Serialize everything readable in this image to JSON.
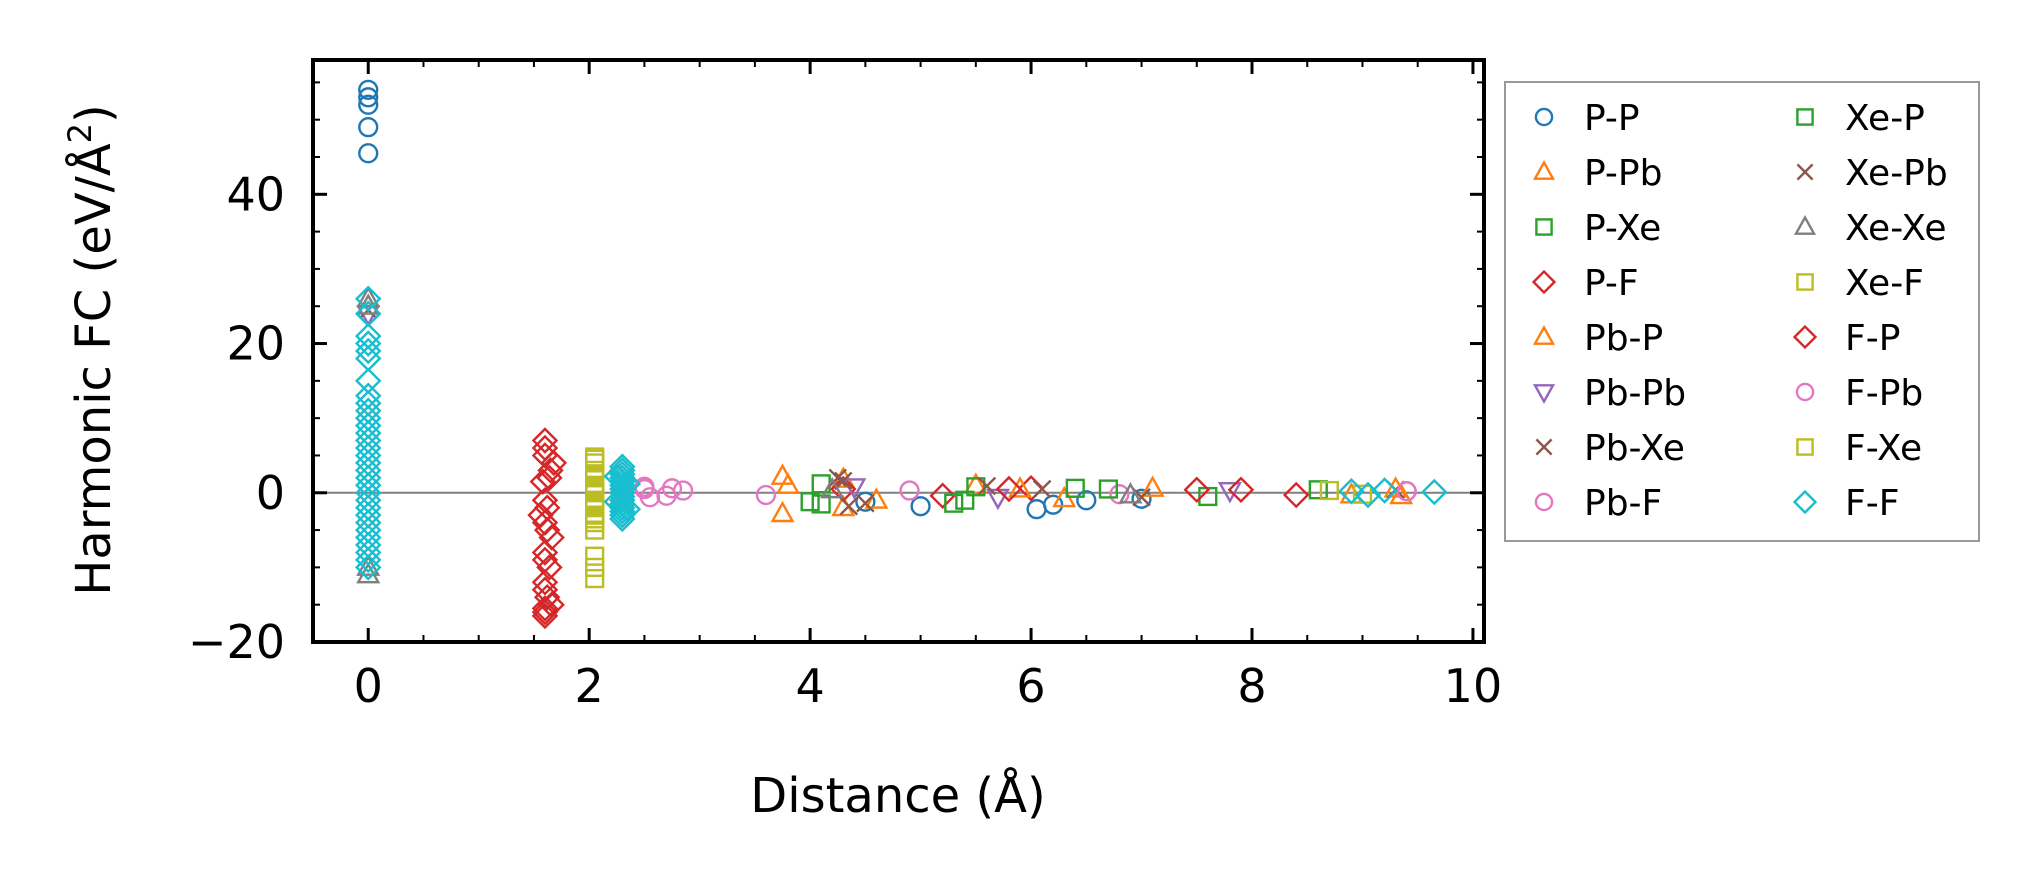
{
  "chart_data": {
    "type": "scatter",
    "xlabel": "Distance (Å)",
    "ylabel_main": "Harmonic FC (eV/Å",
    "ylabel_sup": "2",
    "ylabel_end": ")",
    "xlim": [
      -0.5,
      10.1
    ],
    "ylim": [
      -20,
      58
    ],
    "xticks": [
      0,
      2,
      4,
      6,
      8,
      10
    ],
    "xtick_labels": [
      "0",
      "2",
      "4",
      "6",
      "8",
      "10"
    ],
    "yticks": [
      -20,
      0,
      20,
      40
    ],
    "ytick_labels": [
      "−20",
      "0",
      "20",
      "40"
    ],
    "zero_line": 0,
    "legend_position": "right-outside",
    "series": [
      {
        "name": "P-P",
        "marker": "circle",
        "color": "#1f77b4",
        "points": [
          [
            0,
            54
          ],
          [
            0,
            53
          ],
          [
            0,
            52
          ],
          [
            0,
            49
          ],
          [
            0,
            45.5
          ],
          [
            5.0,
            -1.8
          ],
          [
            6.05,
            -2.2
          ],
          [
            6.2,
            -1.6
          ],
          [
            4.5,
            -1.2
          ],
          [
            7.0,
            -0.8
          ],
          [
            6.5,
            -1.0
          ]
        ]
      },
      {
        "name": "P-Pb",
        "marker": "triangle-up",
        "color": "#ff7f0e",
        "points": [
          [
            3.75,
            2.2
          ],
          [
            3.75,
            -2.8
          ],
          [
            4.3,
            1.8
          ],
          [
            4.3,
            -2.0
          ],
          [
            5.5,
            1.0
          ],
          [
            6.3,
            -0.8
          ],
          [
            7.1,
            0.6
          ],
          [
            9.3,
            0.5
          ],
          [
            9.35,
            -0.4
          ]
        ]
      },
      {
        "name": "P-Xe",
        "marker": "square",
        "color": "#2ca02c",
        "points": [
          [
            4.1,
            -1.5
          ],
          [
            4.1,
            1.2
          ],
          [
            5.4,
            -1.0
          ],
          [
            5.5,
            0.8
          ],
          [
            6.4,
            0.6
          ],
          [
            7.6,
            -0.5
          ],
          [
            8.6,
            0.4
          ]
        ]
      },
      {
        "name": "P-F",
        "marker": "diamond",
        "color": "#d62728",
        "points": [
          [
            1.6,
            7
          ],
          [
            1.6,
            5
          ],
          [
            1.65,
            3
          ],
          [
            1.58,
            1.5
          ],
          [
            1.62,
            -2
          ],
          [
            1.6,
            -4
          ],
          [
            1.66,
            -6
          ],
          [
            1.6,
            -8
          ],
          [
            1.64,
            -10
          ],
          [
            1.6,
            -12
          ],
          [
            1.62,
            -14
          ],
          [
            1.6,
            -15.5
          ],
          [
            1.6,
            -16.5
          ],
          [
            1.68,
            4
          ],
          [
            1.56,
            -3
          ],
          [
            4.3,
            0.5
          ],
          [
            5.2,
            -0.4
          ],
          [
            6.0,
            0.6
          ],
          [
            7.5,
            0.4
          ],
          [
            8.4,
            -0.3
          ]
        ]
      },
      {
        "name": "Pb-P",
        "marker": "triangle-up",
        "color": "#ff7f0e",
        "points": [
          [
            3.8,
            1.0
          ],
          [
            4.6,
            -1.0
          ],
          [
            5.9,
            0.5
          ],
          [
            8.9,
            -0.3
          ]
        ]
      },
      {
        "name": "Pb-Pb",
        "marker": "triangle-down",
        "color": "#9467bd",
        "points": [
          [
            0,
            24
          ],
          [
            4.4,
            0.8
          ],
          [
            5.7,
            -0.6
          ],
          [
            7.8,
            0.3
          ]
        ]
      },
      {
        "name": "Pb-Xe",
        "marker": "x",
        "color": "#8c564b",
        "points": [
          [
            0,
            24.5
          ],
          [
            4.3,
            1.6
          ],
          [
            4.5,
            -1.4
          ],
          [
            5.6,
            0.9
          ],
          [
            7.0,
            -0.6
          ],
          [
            9.3,
            0.4
          ]
        ]
      },
      {
        "name": "Pb-F",
        "marker": "circle",
        "color": "#e377c2",
        "points": [
          [
            2.5,
            0.8
          ],
          [
            2.55,
            -0.6
          ],
          [
            2.75,
            0.6
          ],
          [
            3.6,
            -0.3
          ],
          [
            4.9,
            0.3
          ],
          [
            6.8,
            -0.2
          ],
          [
            9.4,
            0.2
          ]
        ]
      },
      {
        "name": "Xe-P",
        "marker": "square",
        "color": "#2ca02c",
        "points": [
          [
            4.0,
            -1.2
          ],
          [
            5.3,
            -1.4
          ],
          [
            6.7,
            0.5
          ]
        ]
      },
      {
        "name": "Xe-Pb",
        "marker": "x",
        "color": "#8c564b",
        "points": [
          [
            4.25,
            2.0
          ],
          [
            4.35,
            -1.8
          ],
          [
            6.1,
            0.5
          ]
        ]
      },
      {
        "name": "Xe-Xe",
        "marker": "triangle-up",
        "color": "#7f7f7f",
        "points": [
          [
            0,
            26
          ],
          [
            0,
            25
          ],
          [
            0,
            -10
          ],
          [
            0,
            -11
          ],
          [
            4.2,
            0.4
          ],
          [
            6.9,
            -0.3
          ]
        ]
      },
      {
        "name": "Xe-F",
        "marker": "square",
        "color": "#bcbd22",
        "points": [
          [
            2.05,
            4.8
          ],
          [
            2.05,
            4.0
          ],
          [
            2.05,
            3.0
          ],
          [
            2.05,
            2.0
          ],
          [
            2.05,
            1.0
          ],
          [
            2.05,
            0
          ],
          [
            2.05,
            -1
          ],
          [
            2.05,
            -2
          ],
          [
            2.05,
            -3
          ],
          [
            2.05,
            -4
          ],
          [
            2.05,
            -5
          ],
          [
            2.05,
            -8.5
          ],
          [
            2.05,
            -10
          ],
          [
            2.05,
            -11.5
          ],
          [
            8.7,
            0.3
          ],
          [
            9.0,
            -0.2
          ]
        ]
      },
      {
        "name": "F-P",
        "marker": "diamond",
        "color": "#d62728",
        "points": [
          [
            1.6,
            6
          ],
          [
            1.64,
            2
          ],
          [
            1.6,
            -1
          ],
          [
            1.62,
            -5
          ],
          [
            1.6,
            -9
          ],
          [
            1.6,
            -13
          ],
          [
            1.66,
            -15
          ],
          [
            1.6,
            -16
          ],
          [
            5.8,
            0.5
          ],
          [
            7.9,
            0.4
          ]
        ]
      },
      {
        "name": "F-Pb",
        "marker": "circle",
        "color": "#e377c2",
        "points": [
          [
            2.5,
            0.5
          ],
          [
            2.7,
            -0.4
          ],
          [
            2.85,
            0.3
          ],
          [
            9.4,
            0.2
          ]
        ]
      },
      {
        "name": "F-Xe",
        "marker": "square",
        "color": "#bcbd22",
        "points": [
          [
            2.05,
            4.5
          ],
          [
            2.05,
            2.5
          ],
          [
            2.05,
            0.5
          ],
          [
            2.05,
            -1.5
          ],
          [
            2.05,
            -3.5
          ]
        ]
      },
      {
        "name": "F-F",
        "marker": "diamond",
        "color": "#17becf",
        "points": [
          [
            0,
            26
          ],
          [
            0,
            24
          ],
          [
            0,
            21
          ],
          [
            0,
            20
          ],
          [
            0,
            19
          ],
          [
            0,
            18
          ],
          [
            0,
            15
          ],
          [
            0,
            13
          ],
          [
            0,
            12
          ],
          [
            0,
            11
          ],
          [
            0,
            10
          ],
          [
            0,
            9
          ],
          [
            0,
            8
          ],
          [
            0,
            7
          ],
          [
            0,
            6
          ],
          [
            0,
            5
          ],
          [
            0,
            4
          ],
          [
            0,
            3
          ],
          [
            0,
            2
          ],
          [
            0,
            1
          ],
          [
            0,
            0
          ],
          [
            0,
            -1
          ],
          [
            0,
            -2
          ],
          [
            0,
            -3
          ],
          [
            0,
            -4
          ],
          [
            0,
            -5
          ],
          [
            0,
            -6
          ],
          [
            0,
            -7
          ],
          [
            0,
            -8
          ],
          [
            0,
            -9
          ],
          [
            0,
            -10
          ],
          [
            2.3,
            3.5
          ],
          [
            2.3,
            3.0
          ],
          [
            2.3,
            2.5
          ],
          [
            2.3,
            2.0
          ],
          [
            2.3,
            1.5
          ],
          [
            2.3,
            1.0
          ],
          [
            2.3,
            0.5
          ],
          [
            2.3,
            0
          ],
          [
            2.3,
            -0.5
          ],
          [
            2.3,
            -1.0
          ],
          [
            2.3,
            -1.5
          ],
          [
            2.3,
            -2.0
          ],
          [
            2.3,
            -2.5
          ],
          [
            2.3,
            -3.0
          ],
          [
            2.3,
            -3.5
          ],
          [
            2.25,
            2.2
          ],
          [
            2.35,
            -2.2
          ],
          [
            2.25,
            -1.2
          ],
          [
            2.35,
            1.2
          ],
          [
            8.9,
            0.2
          ],
          [
            9.05,
            -0.3
          ],
          [
            9.2,
            0.3
          ],
          [
            9.65,
            0.1
          ]
        ]
      }
    ]
  }
}
